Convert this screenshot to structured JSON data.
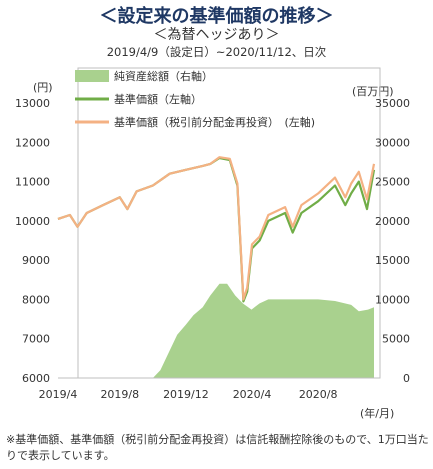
{
  "header": {
    "title": "＜設定来の基準価額の推移＞",
    "subtitle": "＜為替ヘッジあり＞",
    "period": "2019/4/9（設定日）~2020/11/12、日次"
  },
  "footnote": "※基準価額、基準価額（税引前分配金再投資）は信託報酬控除後のもので、1万口当たりで表示しています。",
  "chart_data": {
    "type": "line",
    "left_axis_unit": "(円)",
    "right_axis_unit": "(百万円)",
    "x_axis_unit": "(年/月)",
    "xlim": [
      "2019-04-09",
      "2020-11-12"
    ],
    "ylim_left": [
      6000,
      13000
    ],
    "ylim_right": [
      0,
      35000
    ],
    "left_ticks": [
      6000,
      7000,
      8000,
      9000,
      10000,
      11000,
      12000,
      13000
    ],
    "right_ticks": [
      0,
      5000,
      10000,
      15000,
      20000,
      25000,
      30000,
      35000
    ],
    "x_tick_labels": [
      "2019/4",
      "2019/8",
      "2019/12",
      "2020/4",
      "2020/8"
    ],
    "legend": {
      "placement": "top-left",
      "entries": [
        "純資産総額（右軸）",
        "基準価額（左軸）",
        "基準価額（税引前分配金再投資）　(左軸)"
      ]
    },
    "series": [
      {
        "name": "純資産総額（右軸）",
        "axis": "right",
        "color": "#a9d18e",
        "x": [
          "2019-04-09",
          "2019-09-01",
          "2019-10-01",
          "2019-10-15",
          "2019-11-01",
          "2019-11-15",
          "2019-12-01",
          "2019-12-15",
          "2020-01-01",
          "2020-01-15",
          "2020-02-01",
          "2020-02-15",
          "2020-03-01",
          "2020-03-15",
          "2020-03-31",
          "2020-04-15",
          "2020-05-01",
          "2020-06-01",
          "2020-07-01",
          "2020-08-01",
          "2020-09-01",
          "2020-10-01",
          "2020-10-15",
          "2020-11-01",
          "2020-11-12"
        ],
        "values": [
          0,
          0,
          0,
          1000,
          3500,
          5500,
          6800,
          8000,
          9000,
          10500,
          12000,
          12000,
          10500,
          9500,
          8700,
          9500,
          10000,
          10000,
          10000,
          10000,
          9800,
          9300,
          8500,
          8700,
          9000
        ]
      },
      {
        "name": "基準価額（左軸）",
        "axis": "left",
        "color": "#70ad47",
        "x": [
          "2019-04-09",
          "2019-05-01",
          "2019-05-15",
          "2019-06-01",
          "2019-07-01",
          "2019-08-01",
          "2019-08-15",
          "2019-09-01",
          "2019-10-01",
          "2019-11-01",
          "2019-12-01",
          "2020-01-01",
          "2020-01-15",
          "2020-02-01",
          "2020-02-20",
          "2020-03-05",
          "2020-03-16",
          "2020-03-23",
          "2020-04-01",
          "2020-04-15",
          "2020-05-01",
          "2020-06-01",
          "2020-06-15",
          "2020-07-01",
          "2020-08-01",
          "2020-09-01",
          "2020-09-20",
          "2020-10-01",
          "2020-10-15",
          "2020-10-30",
          "2020-11-12"
        ],
        "values": [
          10050,
          10150,
          9850,
          10200,
          10400,
          10600,
          10300,
          10750,
          10900,
          11200,
          11300,
          11400,
          11450,
          11600,
          11550,
          10900,
          7950,
          8200,
          9300,
          9500,
          10000,
          10200,
          9700,
          10200,
          10500,
          10900,
          10400,
          10700,
          11000,
          10300,
          11300
        ]
      },
      {
        "name": "基準価額（税引前分配金再投資）　(左軸)",
        "axis": "left",
        "color": "#f4b183",
        "x": [
          "2019-04-09",
          "2019-05-01",
          "2019-05-15",
          "2019-06-01",
          "2019-07-01",
          "2019-08-01",
          "2019-08-15",
          "2019-09-01",
          "2019-10-01",
          "2019-11-01",
          "2019-12-01",
          "2020-01-01",
          "2020-01-15",
          "2020-02-01",
          "2020-02-20",
          "2020-03-05",
          "2020-03-16",
          "2020-03-23",
          "2020-04-01",
          "2020-04-15",
          "2020-05-01",
          "2020-06-01",
          "2020-06-15",
          "2020-07-01",
          "2020-08-01",
          "2020-09-01",
          "2020-09-20",
          "2020-10-01",
          "2020-10-15",
          "2020-10-30",
          "2020-11-12"
        ],
        "values": [
          10050,
          10150,
          9850,
          10200,
          10400,
          10600,
          10300,
          10750,
          10900,
          11200,
          11300,
          11400,
          11450,
          11620,
          11580,
          10950,
          8000,
          8300,
          9400,
          9600,
          10150,
          10350,
          9850,
          10400,
          10700,
          11100,
          10600,
          10950,
          11250,
          10550,
          11450
        ]
      }
    ]
  }
}
